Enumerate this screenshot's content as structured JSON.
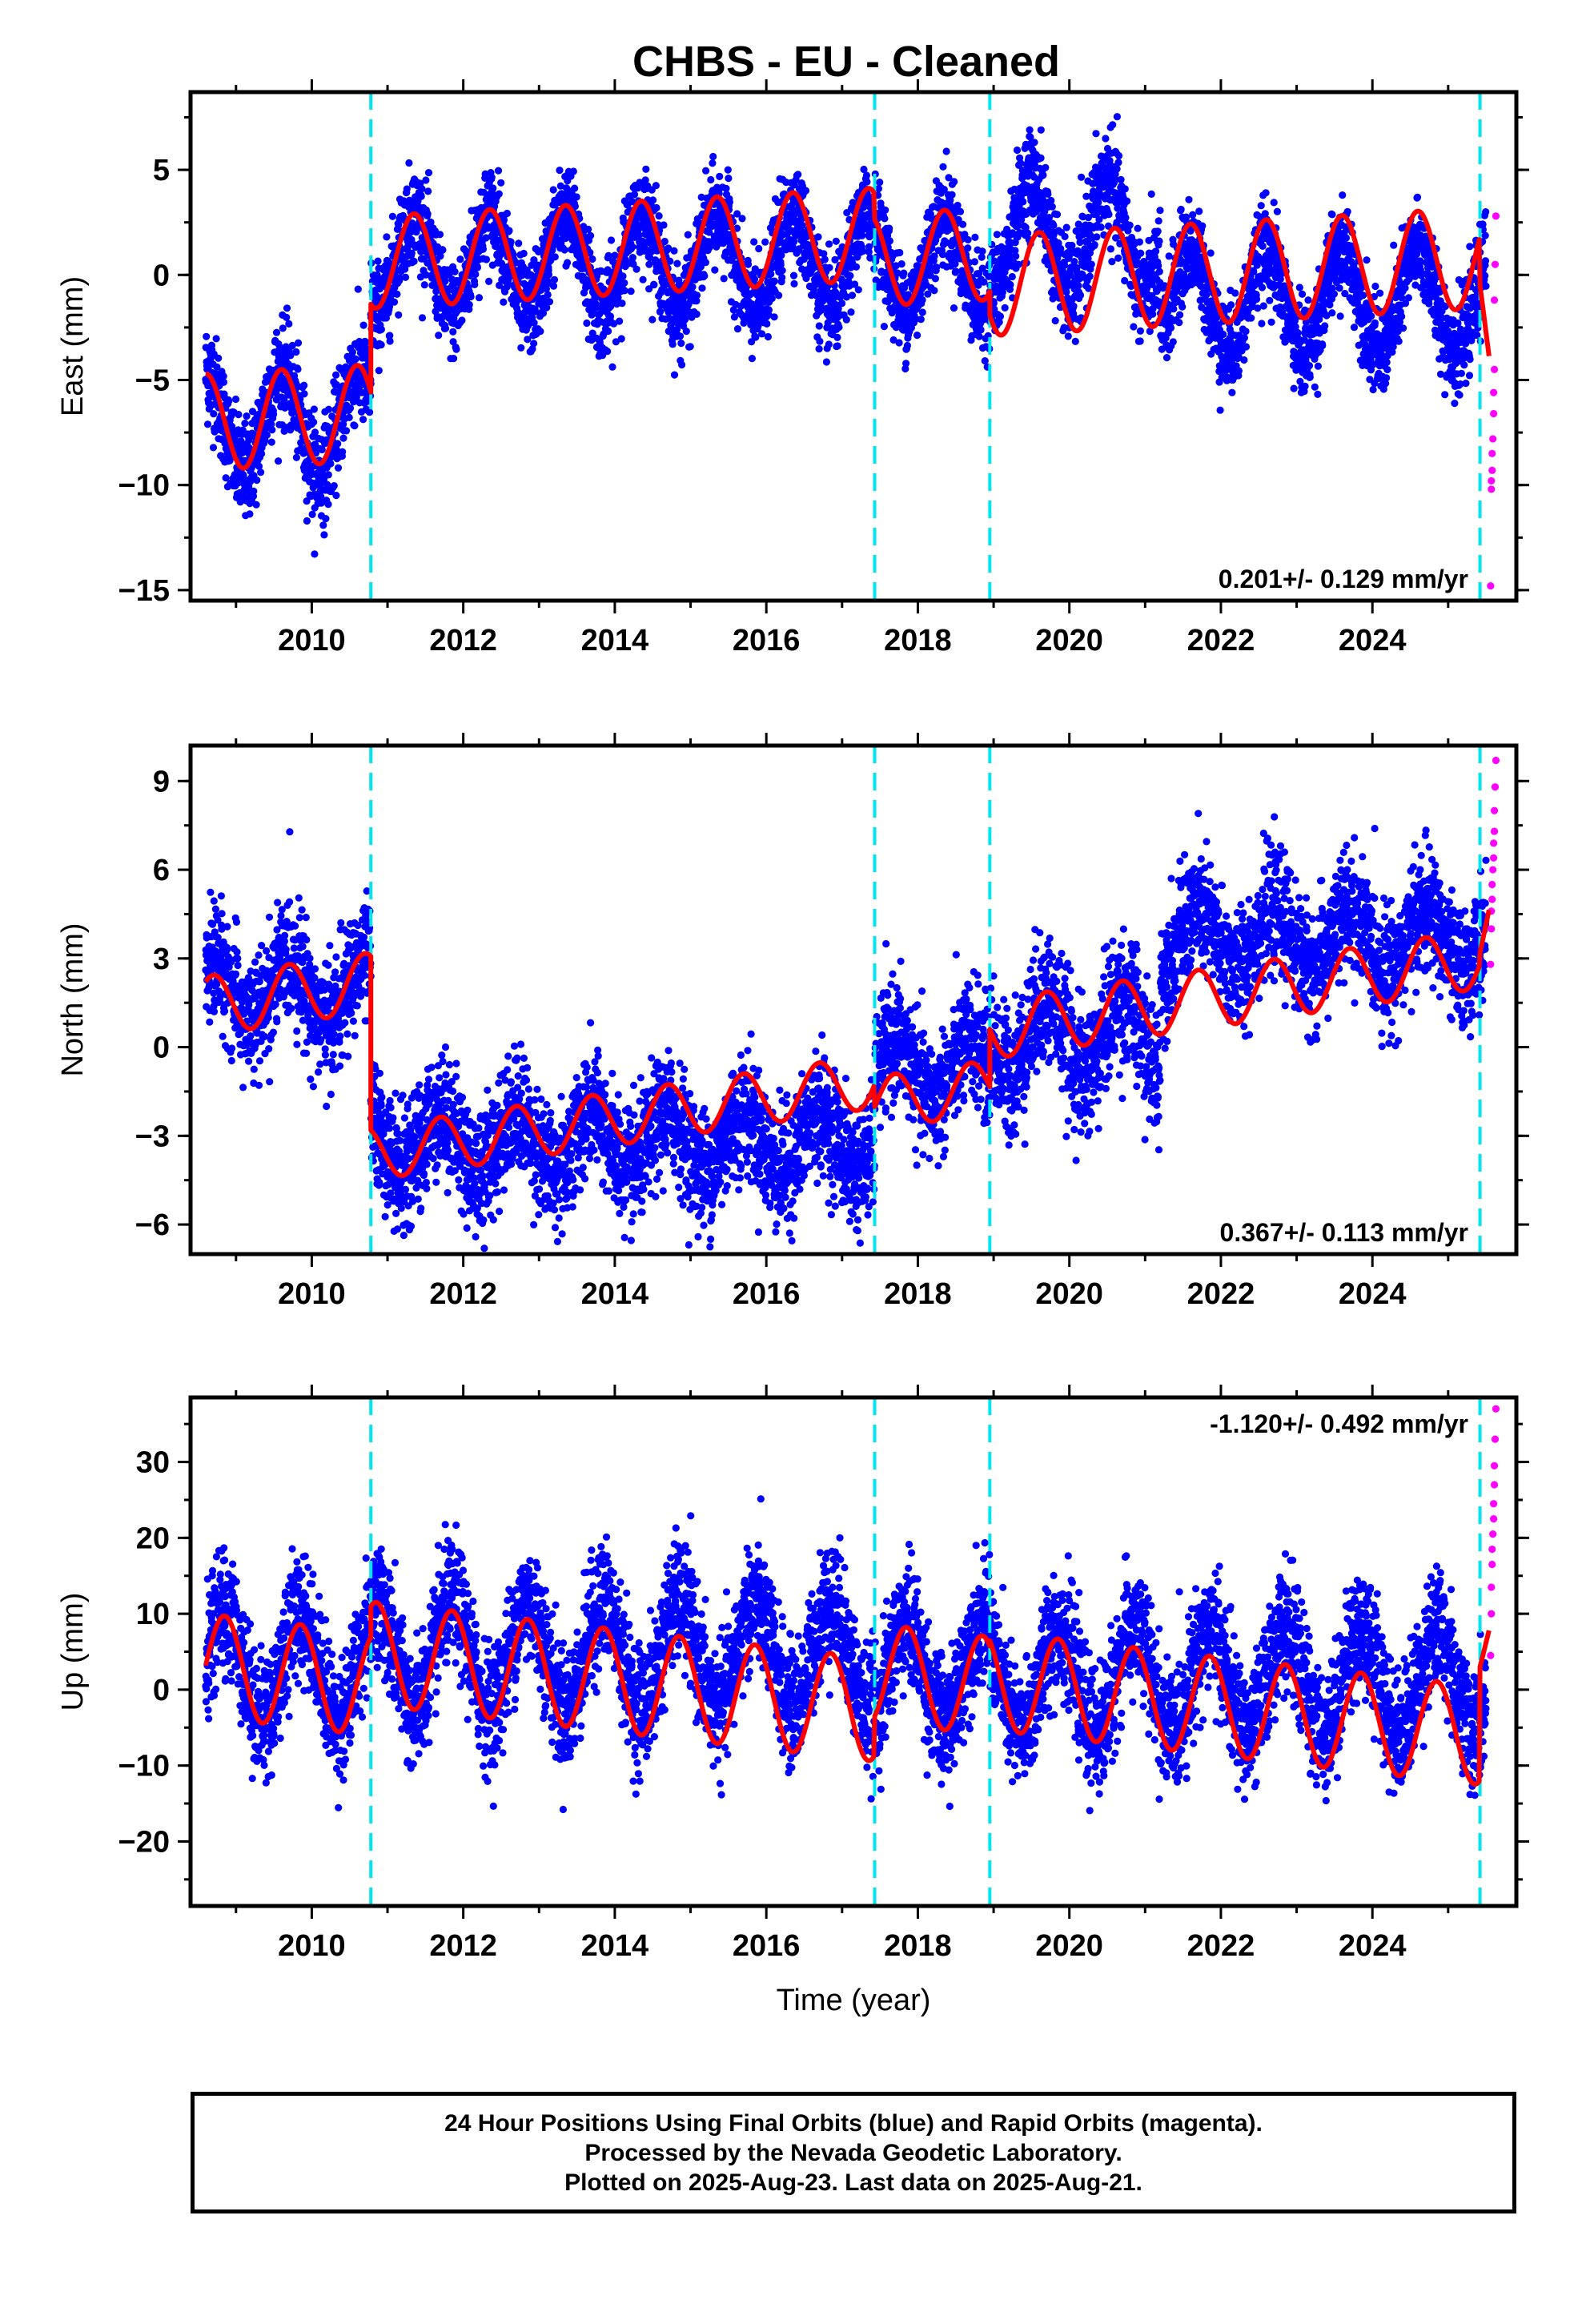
{
  "title": "CHBS  - EU - Cleaned",
  "colors": {
    "final": "#0000ff",
    "rapid": "#ff00ff",
    "model": "#ff0000",
    "breaks": "#00e5ee"
  },
  "chart_data": [
    {
      "type": "scatter",
      "component": "East",
      "ylabel": "East (mm)",
      "xlabel": "",
      "xlim": [
        2008.4,
        2025.9
      ],
      "ylim": [
        -15.5,
        8.7
      ],
      "yticks": [
        5,
        0,
        -5,
        -10,
        -15
      ],
      "yticklabels": [
        "5",
        "0",
        "−5",
        "−10",
        "−15"
      ],
      "xticks": [
        2010,
        2012,
        2014,
        2016,
        2018,
        2020,
        2022,
        2024
      ],
      "xticklabels": [
        "2010",
        "2012",
        "2014",
        "2016",
        "2018",
        "2020",
        "2022",
        "2024"
      ],
      "rate_label": "0.201+/- 0.129 mm/yr",
      "rate_position": "bottom-right",
      "breaks": [
        2010.78,
        2017.43,
        2018.95,
        2025.42
      ],
      "model_segments": [
        {
          "x0": 2008.6,
          "x1": 2010.78,
          "offset": -7.0,
          "slope": 0.201,
          "amp": 2.3,
          "phase": 0.35
        },
        {
          "x0": 2010.78,
          "x1": 2017.43,
          "offset": 0.6,
          "slope": 0.201,
          "amp": 2.2,
          "phase": 0.1
        },
        {
          "x0": 2017.43,
          "x1": 2018.95,
          "offset": 0.7,
          "slope": 0.201,
          "amp": 2.2,
          "phase": 0.1
        },
        {
          "x0": 2018.95,
          "x1": 2025.42,
          "offset": -0.5,
          "slope": 0.201,
          "amp": 2.4,
          "phase": 0.35
        },
        {
          "x0": 2025.42,
          "x1": 2025.55,
          "offset": -0.5,
          "slope": -28.0,
          "amp": 0.0,
          "phase": 0.0
        }
      ],
      "data_segments": [
        {
          "x0": 2008.6,
          "x1": 2010.78,
          "offset": -7.0,
          "amp": 2.4,
          "phase": 0.35,
          "scatter": 1.2
        },
        {
          "x0": 2010.78,
          "x1": 2017.43,
          "offset": 0.6,
          "amp": 2.3,
          "phase": 0.1,
          "scatter": 1.1
        },
        {
          "x0": 2017.43,
          "x1": 2018.95,
          "offset": 0.6,
          "amp": 2.2,
          "phase": 0.1,
          "scatter": 1.1
        },
        {
          "x0": 2018.95,
          "x1": 2021.2,
          "offset": 1.8,
          "amp": 2.6,
          "phase": 0.25,
          "scatter": 1.2
        },
        {
          "x0": 2021.2,
          "x1": 2025.5,
          "offset": -1.2,
          "amp": 2.4,
          "phase": 0.35,
          "scatter": 1.1
        }
      ],
      "rapid_points": {
        "x": [
          2025.56,
          2025.57,
          2025.57,
          2025.58,
          2025.58,
          2025.59,
          2025.6,
          2025.6,
          2025.61,
          2025.61,
          2025.62,
          2025.63
        ],
        "y": [
          -14.8,
          -10.2,
          -9.8,
          -9.3,
          -8.5,
          -7.8,
          -6.6,
          -5.6,
          -4.5,
          -1.2,
          0.5,
          2.8
        ]
      }
    },
    {
      "type": "scatter",
      "component": "North",
      "ylabel": "North (mm)",
      "xlabel": "",
      "xlim": [
        2008.4,
        2025.9
      ],
      "ylim": [
        -7.0,
        10.2
      ],
      "yticks": [
        9,
        6,
        3,
        0,
        -3,
        -6
      ],
      "yticklabels": [
        "9",
        "6",
        "3",
        "0",
        "−3",
        "−6"
      ],
      "xticks": [
        2010,
        2012,
        2014,
        2016,
        2018,
        2020,
        2022,
        2024
      ],
      "xticklabels": [
        "2010",
        "2012",
        "2014",
        "2016",
        "2018",
        "2020",
        "2022",
        "2024"
      ],
      "rate_label": "0.367+/- 0.113 mm/yr",
      "rate_position": "bottom-right",
      "breaks": [
        2010.78,
        2017.43,
        2018.95,
        2025.42
      ],
      "model_segments": [
        {
          "x0": 2008.6,
          "x1": 2010.78,
          "offset": 1.4,
          "slope": 0.367,
          "amp": 1.0,
          "phase": 0.45
        },
        {
          "x0": 2010.78,
          "x1": 2017.43,
          "offset": -3.6,
          "slope": 0.367,
          "amp": 0.9,
          "phase": 0.45
        },
        {
          "x0": 2017.43,
          "x1": 2018.95,
          "offset": -1.9,
          "slope": 0.367,
          "amp": 0.9,
          "phase": 0.45
        },
        {
          "x0": 2018.95,
          "x1": 2025.42,
          "offset": 0.6,
          "slope": 0.367,
          "amp": 1.0,
          "phase": 0.45
        },
        {
          "x0": 2025.42,
          "x1": 2025.55,
          "offset": 3.2,
          "slope": 12.0,
          "amp": 0.0,
          "phase": 0.0
        }
      ],
      "data_segments": [
        {
          "x0": 2008.6,
          "x1": 2010.78,
          "offset": 1.9,
          "amp": 1.1,
          "phase": 0.45,
          "scatter": 1.0
        },
        {
          "x0": 2010.78,
          "x1": 2017.43,
          "offset": -3.2,
          "amp": 1.0,
          "phase": 0.45,
          "scatter": 1.0
        },
        {
          "x0": 2017.43,
          "x1": 2018.95,
          "offset": -0.8,
          "amp": 1.0,
          "phase": 0.45,
          "scatter": 1.0
        },
        {
          "x0": 2018.95,
          "x1": 2021.2,
          "offset": 0.4,
          "amp": 1.3,
          "phase": 0.45,
          "scatter": 1.1
        },
        {
          "x0": 2021.2,
          "x1": 2025.5,
          "offset": 3.6,
          "amp": 1.0,
          "phase": 0.45,
          "scatter": 1.0
        }
      ],
      "rapid_points": {
        "x": [
          2025.56,
          2025.57,
          2025.57,
          2025.58,
          2025.58,
          2025.59,
          2025.6,
          2025.6,
          2025.61,
          2025.61,
          2025.62,
          2025.63
        ],
        "y": [
          2.8,
          4.0,
          4.6,
          5.0,
          5.5,
          6.0,
          6.4,
          6.9,
          7.3,
          8.0,
          8.8,
          9.7
        ]
      }
    },
    {
      "type": "scatter",
      "component": "Up",
      "ylabel": "Up (mm)",
      "xlabel": "Time (year)",
      "xlim": [
        2008.4,
        2025.9
      ],
      "ylim": [
        -28.5,
        38.5
      ],
      "yticks": [
        30,
        20,
        10,
        0,
        -10,
        -20
      ],
      "yticklabels": [
        "30",
        "20",
        "10",
        "0",
        "−10",
        "−20"
      ],
      "xticks": [
        2010,
        2012,
        2014,
        2016,
        2018,
        2020,
        2022,
        2024
      ],
      "xticklabels": [
        "2010",
        "2012",
        "2014",
        "2016",
        "2018",
        "2020",
        "2022",
        "2024"
      ],
      "rate_label": "-1.120+/- 0.492 mm/yr",
      "rate_position": "top-right",
      "breaks": [
        2010.78,
        2017.43,
        2018.95,
        2025.42
      ],
      "model_segments": [
        {
          "x0": 2008.6,
          "x1": 2010.78,
          "offset": 3.2,
          "slope": -1.12,
          "amp": 6.8,
          "phase": 0.6
        },
        {
          "x0": 2010.78,
          "x1": 2017.43,
          "offset": 4.8,
          "slope": -1.12,
          "amp": 6.8,
          "phase": 0.6
        },
        {
          "x0": 2017.43,
          "x1": 2018.95,
          "offset": 2.2,
          "slope": -1.12,
          "amp": 6.5,
          "phase": 0.6
        },
        {
          "x0": 2018.95,
          "x1": 2025.42,
          "offset": 1.2,
          "slope": -1.12,
          "amp": 6.5,
          "phase": 0.6
        },
        {
          "x0": 2025.42,
          "x1": 2025.55,
          "offset": 3.0,
          "slope": 40.0,
          "amp": 0.0,
          "phase": 0.0
        }
      ],
      "data_segments": [
        {
          "x0": 2008.6,
          "x1": 2010.78,
          "offset": 3.2,
          "amp": 7.0,
          "phase": 0.6,
          "scatter": 4.0
        },
        {
          "x0": 2010.78,
          "x1": 2017.43,
          "offset": 4.6,
          "amp": 7.0,
          "phase": 0.6,
          "scatter": 4.0
        },
        {
          "x0": 2017.43,
          "x1": 2018.95,
          "offset": 2.2,
          "amp": 6.8,
          "phase": 0.6,
          "scatter": 4.0
        },
        {
          "x0": 2018.95,
          "x1": 2025.5,
          "offset": 1.2,
          "amp": 6.8,
          "phase": 0.6,
          "scatter": 4.0
        }
      ],
      "rapid_points": {
        "x": [
          2025.56,
          2025.57,
          2025.57,
          2025.58,
          2025.58,
          2025.59,
          2025.6,
          2025.6,
          2025.61,
          2025.61,
          2025.62,
          2025.63
        ],
        "y": [
          4.5,
          10.0,
          13.5,
          16.5,
          18.5,
          20.5,
          22.5,
          24.5,
          27.0,
          29.5,
          33.0,
          37.0
        ]
      }
    }
  ],
  "footer": {
    "line1": "24 Hour Positions Using Final Orbits (blue) and Rapid Orbits (magenta).",
    "line2": "Processed by the Nevada Geodetic Laboratory.",
    "line3": "Plotted on 2025-Aug-23. Last data on 2025-Aug-21."
  }
}
